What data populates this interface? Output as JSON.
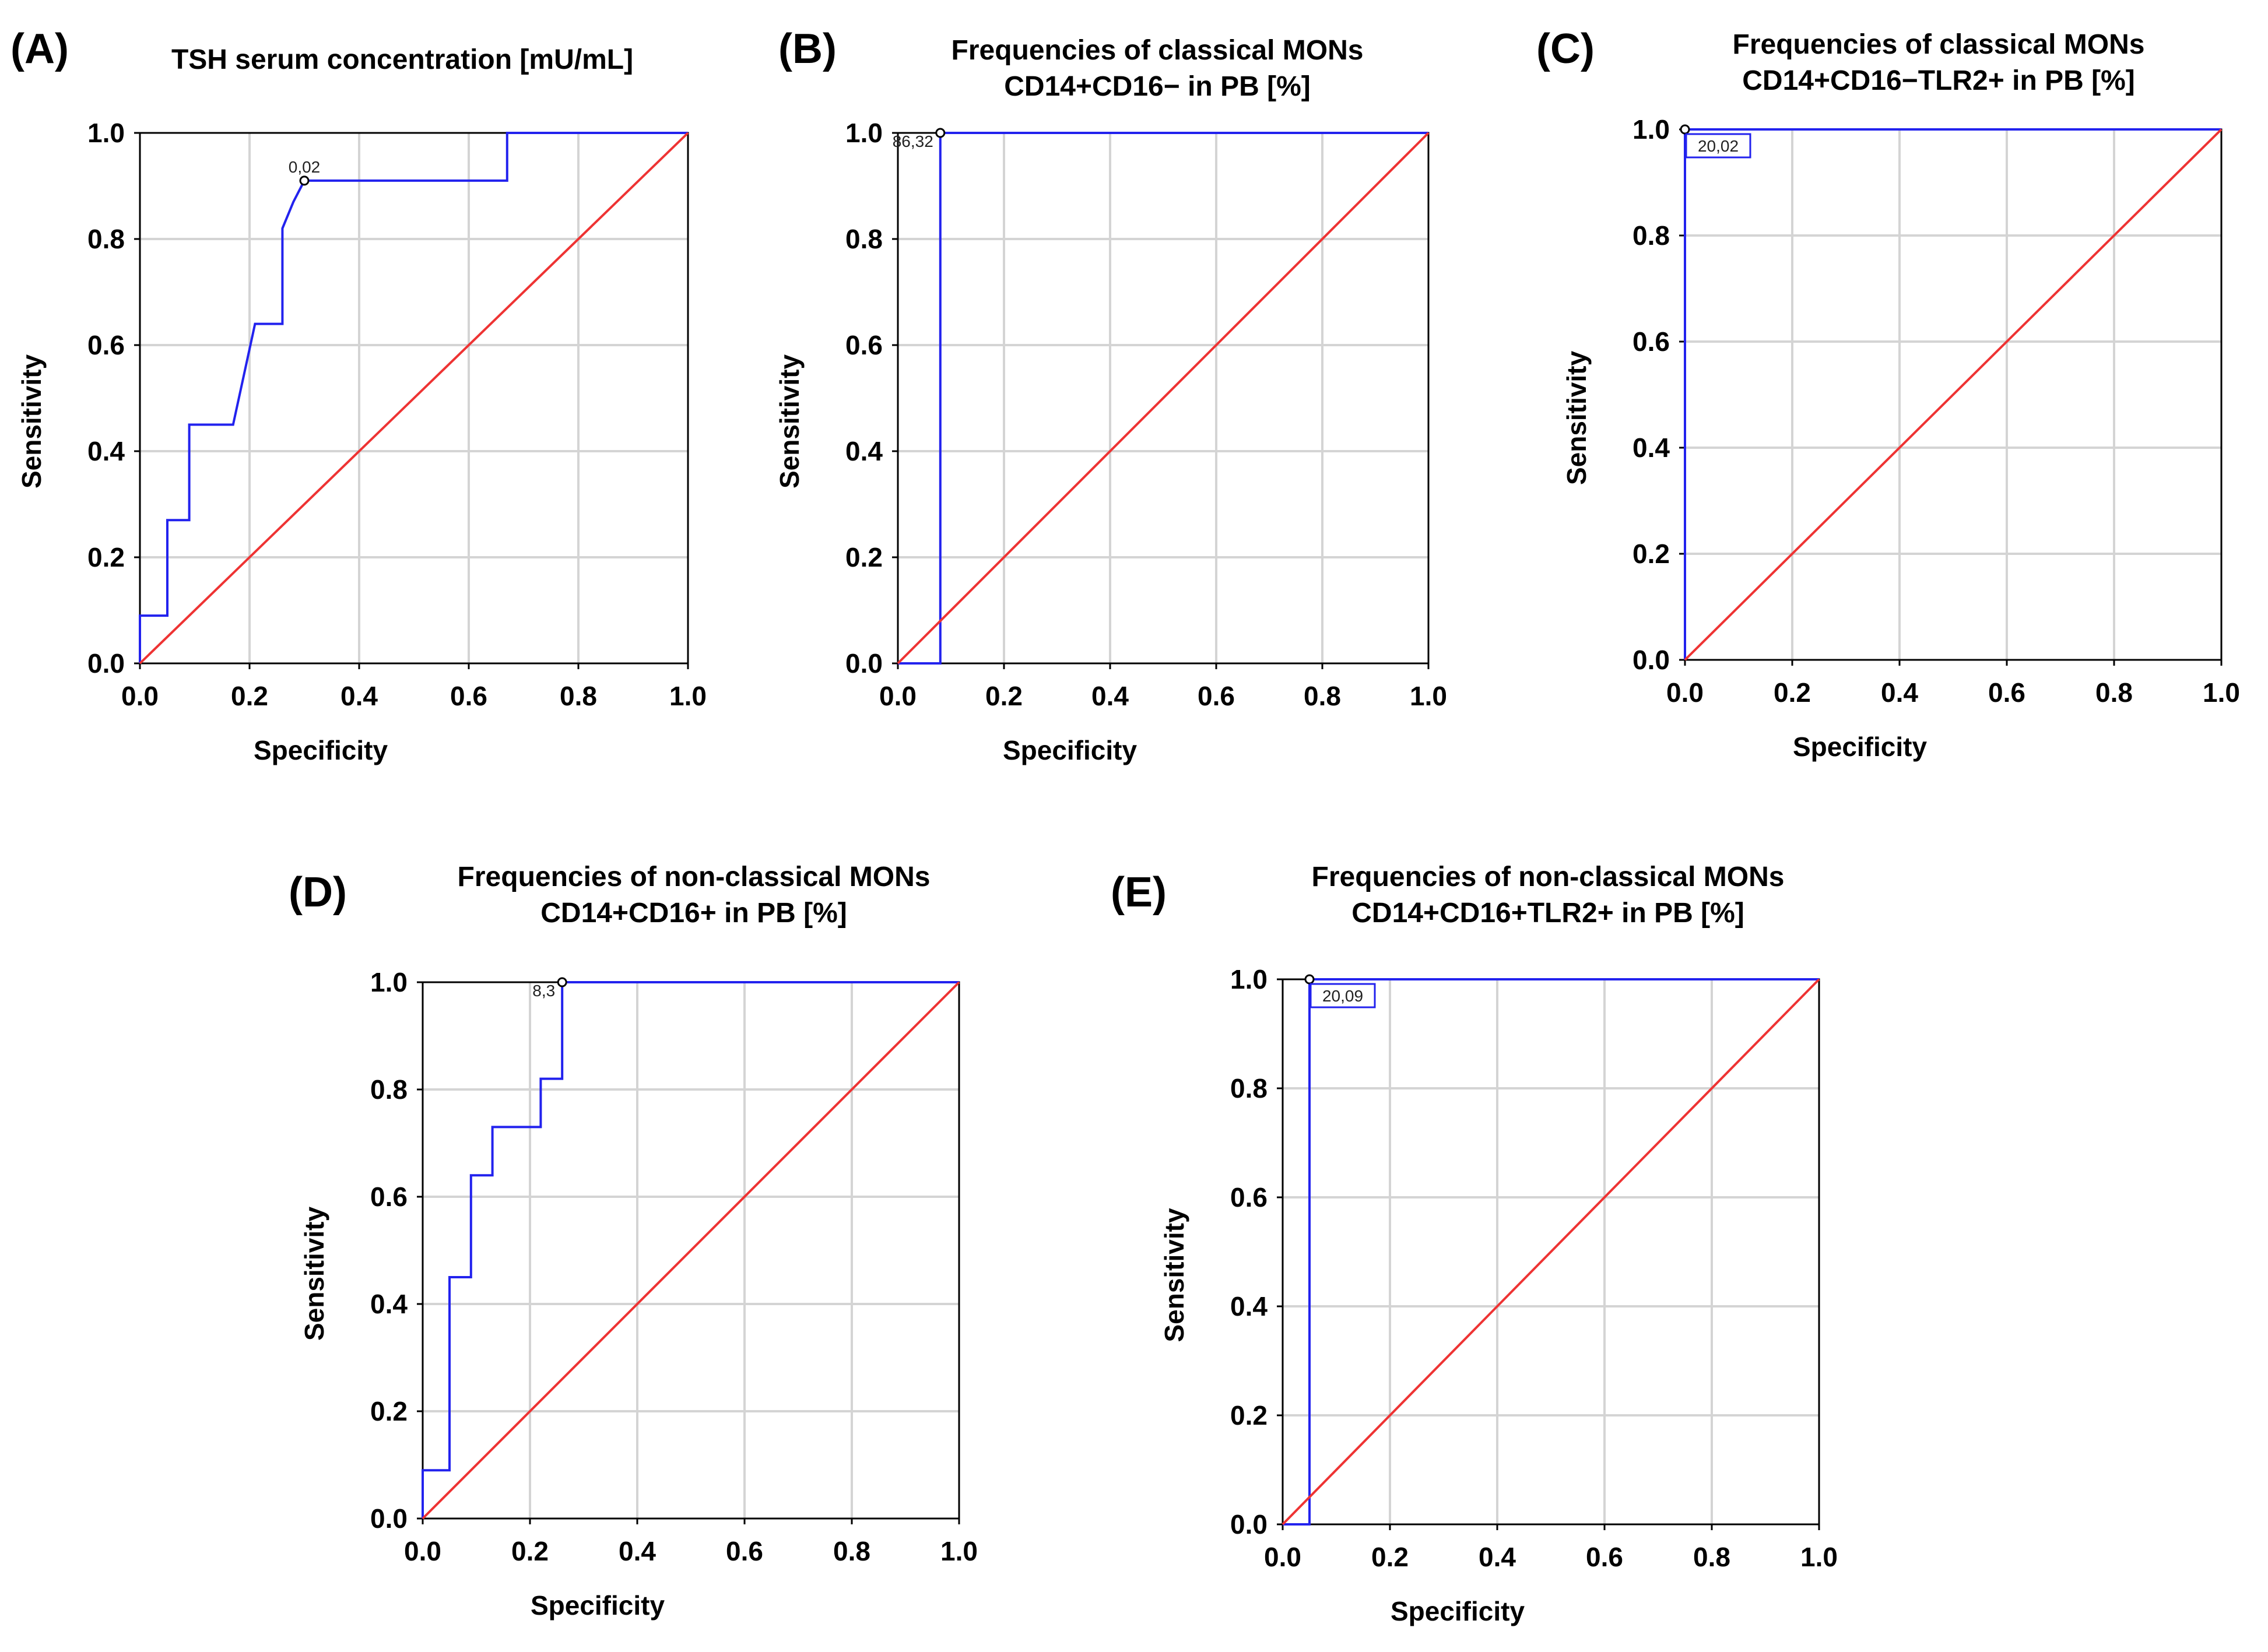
{
  "figure": {
    "description_free": true
  },
  "chart_data": [
    {
      "type": "line",
      "panel": "(A)",
      "title": "TSH serum concentration [mU/mL]",
      "title_lines": [
        "TSH serum concentration [mU/mL]"
      ],
      "xlabel": "Specificity",
      "ylabel": "Sensitivity",
      "xlim": [
        0,
        1
      ],
      "ylim": [
        0,
        1
      ],
      "xticks": [
        "0.0",
        "0.2",
        "0.4",
        "0.6",
        "0.8",
        "1.0"
      ],
      "yticks": [
        "0.0",
        "0.2",
        "0.4",
        "0.6",
        "0.8",
        "1.0"
      ],
      "series": [
        {
          "name": "ROC",
          "color": "#2222ee",
          "x": [
            0.0,
            0.0,
            0.05,
            0.05,
            0.09,
            0.09,
            0.17,
            0.21,
            0.26,
            0.26,
            0.28,
            0.3,
            0.67,
            0.67,
            1.0
          ],
          "y": [
            0.0,
            0.09,
            0.09,
            0.27,
            0.27,
            0.45,
            0.45,
            0.64,
            0.64,
            0.82,
            0.87,
            0.91,
            0.91,
            1.0,
            1.0
          ]
        },
        {
          "name": "Reference",
          "color": "#ee3333",
          "x": [
            0.0,
            1.0
          ],
          "y": [
            0.0,
            1.0
          ]
        }
      ],
      "annotation": {
        "label": "0,02",
        "x": 0.3,
        "y": 0.91,
        "style": "plain-above"
      }
    },
    {
      "type": "line",
      "panel": "(B)",
      "title": "Frequencies of classical MONs CD14+CD16− in PB [%]",
      "title_lines": [
        "Frequencies of classical MONs",
        "CD14+CD16− in PB [%]"
      ],
      "xlabel": "Specificity",
      "ylabel": "Sensitivity",
      "xlim": [
        0,
        1
      ],
      "ylim": [
        0,
        1
      ],
      "xticks": [
        "0.0",
        "0.2",
        "0.4",
        "0.6",
        "0.8",
        "1.0"
      ],
      "yticks": [
        "0.0",
        "0.2",
        "0.4",
        "0.6",
        "0.8",
        "1.0"
      ],
      "series": [
        {
          "name": "ROC",
          "color": "#2222ee",
          "x": [
            0.0,
            0.08,
            0.08,
            1.0
          ],
          "y": [
            0.0,
            0.0,
            1.0,
            1.0
          ]
        },
        {
          "name": "Reference",
          "color": "#ee3333",
          "x": [
            0.0,
            1.0
          ],
          "y": [
            0.0,
            1.0
          ]
        }
      ],
      "annotation": {
        "label": "86,32",
        "x": 0.08,
        "y": 1.0,
        "style": "plain-left"
      }
    },
    {
      "type": "line",
      "panel": "(C)",
      "title": "Frequencies of classical MONs CD14+CD16−TLR2+ in PB [%]",
      "title_lines": [
        "Frequencies of classical MONs",
        "CD14+CD16−TLR2+ in PB [%]"
      ],
      "xlabel": "Specificity",
      "ylabel": "Sensitivity",
      "xlim": [
        0,
        1
      ],
      "ylim": [
        0,
        1
      ],
      "xticks": [
        "0.0",
        "0.2",
        "0.4",
        "0.6",
        "0.8",
        "1.0"
      ],
      "yticks": [
        "0.0",
        "0.2",
        "0.4",
        "0.6",
        "0.8",
        "1.0"
      ],
      "series": [
        {
          "name": "ROC",
          "color": "#2222ee",
          "x": [
            0.0,
            0.0,
            1.0
          ],
          "y": [
            0.0,
            1.0,
            1.0
          ]
        },
        {
          "name": "Reference",
          "color": "#ee3333",
          "x": [
            0.0,
            1.0
          ],
          "y": [
            0.0,
            1.0
          ]
        }
      ],
      "annotation": {
        "label": "20,02",
        "x": 0.0,
        "y": 1.0,
        "style": "boxed-below"
      }
    },
    {
      "type": "line",
      "panel": "(D)",
      "title": "Frequencies of non-classical MONs CD14+CD16+ in PB [%]",
      "title_lines": [
        "Frequencies of non-classical MONs",
        "CD14+CD16+ in PB [%]"
      ],
      "xlabel": "Specificity",
      "ylabel": "Sensitivity",
      "xlim": [
        0,
        1
      ],
      "ylim": [
        0,
        1
      ],
      "xticks": [
        "0.0",
        "0.2",
        "0.4",
        "0.6",
        "0.8",
        "1.0"
      ],
      "yticks": [
        "0.0",
        "0.2",
        "0.4",
        "0.6",
        "0.8",
        "1.0"
      ],
      "series": [
        {
          "name": "ROC",
          "color": "#2222ee",
          "x": [
            0.0,
            0.0,
            0.05,
            0.05,
            0.09,
            0.09,
            0.13,
            0.13,
            0.22,
            0.22,
            0.26,
            0.26,
            1.0
          ],
          "y": [
            0.0,
            0.09,
            0.09,
            0.45,
            0.45,
            0.64,
            0.64,
            0.73,
            0.73,
            0.82,
            0.82,
            1.0,
            1.0
          ]
        },
        {
          "name": "Reference",
          "color": "#ee3333",
          "x": [
            0.0,
            1.0
          ],
          "y": [
            0.0,
            1.0
          ]
        }
      ],
      "annotation": {
        "label": "8,3",
        "x": 0.26,
        "y": 1.0,
        "style": "plain-left"
      }
    },
    {
      "type": "line",
      "panel": "(E)",
      "title": "Frequencies of non-classical MONs CD14+CD16+TLR2+ in PB [%]",
      "title_lines": [
        "Frequencies of non-classical MONs",
        "CD14+CD16+TLR2+ in PB [%]"
      ],
      "xlabel": "Specificity",
      "ylabel": "Sensitivity",
      "xlim": [
        0,
        1
      ],
      "ylim": [
        0,
        1
      ],
      "xticks": [
        "0.0",
        "0.2",
        "0.4",
        "0.6",
        "0.8",
        "1.0"
      ],
      "yticks": [
        "0.0",
        "0.2",
        "0.4",
        "0.6",
        "0.8",
        "1.0"
      ],
      "series": [
        {
          "name": "ROC",
          "color": "#2222ee",
          "x": [
            0.0,
            0.05,
            0.05,
            1.0
          ],
          "y": [
            0.0,
            0.0,
            1.0,
            1.0
          ]
        },
        {
          "name": "Reference",
          "color": "#ee3333",
          "x": [
            0.0,
            1.0
          ],
          "y": [
            0.0,
            1.0
          ]
        }
      ],
      "annotation": {
        "label": "20,09",
        "x": 0.05,
        "y": 1.0,
        "style": "boxed-below"
      }
    }
  ]
}
